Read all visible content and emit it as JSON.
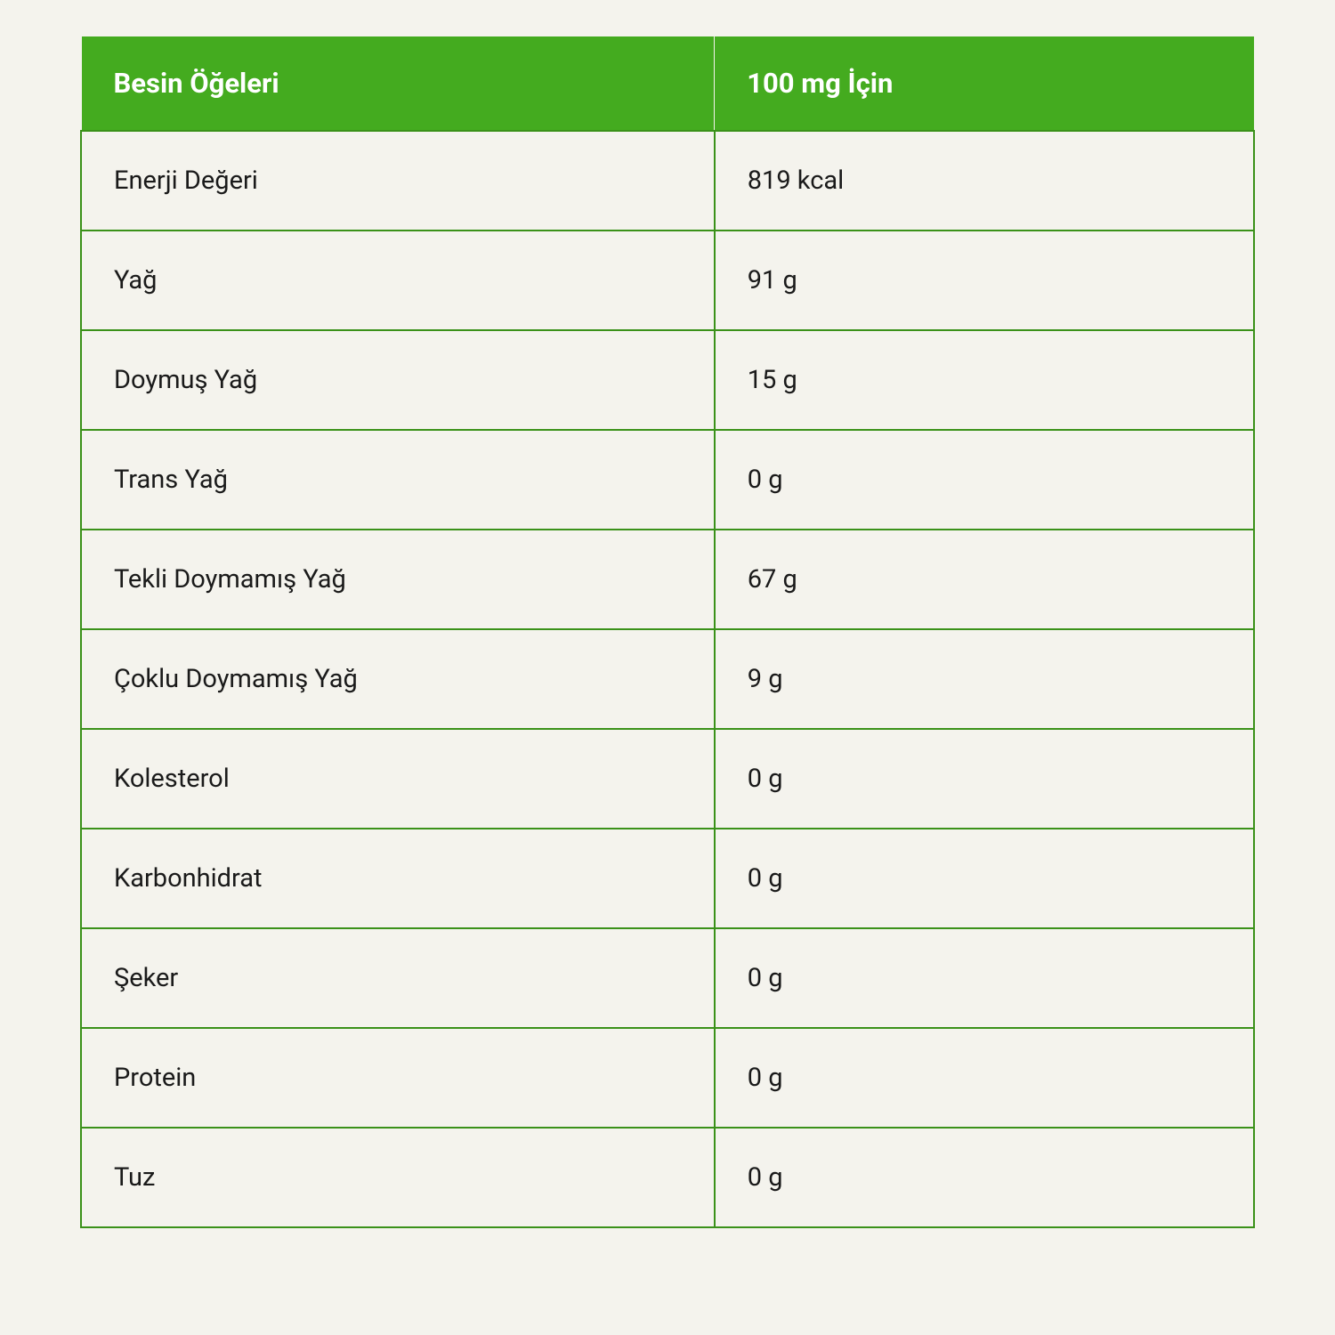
{
  "table": {
    "type": "table",
    "columns": [
      {
        "label": "Besin Öğeleri",
        "width_pct": 54,
        "align": "left"
      },
      {
        "label": "100 mg İçin",
        "width_pct": 46,
        "align": "left"
      }
    ],
    "rows": [
      {
        "label": "Enerji Değeri",
        "value": "819 kcal"
      },
      {
        "label": "Yağ",
        "value": "91 g"
      },
      {
        "label": "Doymuş Yağ",
        "value": "15 g"
      },
      {
        "label": "Trans Yağ",
        "value": "0 g"
      },
      {
        "label": "Tekli Doymamış Yağ",
        "value": "67 g"
      },
      {
        "label": "Çoklu Doymamış Yağ",
        "value": "9 g"
      },
      {
        "label": "Kolesterol",
        "value": "0 g"
      },
      {
        "label": "Karbonhidrat",
        "value": "0 g"
      },
      {
        "label": "Şeker",
        "value": "0 g"
      },
      {
        "label": "Protein",
        "value": "0 g"
      },
      {
        "label": "Tuz",
        "value": "0 g"
      }
    ],
    "header_bg_color": "#44ab1f",
    "header_text_color": "#ffffff",
    "header_fontsize": 31,
    "header_fontweight": 700,
    "cell_bg_color": "#f4f3ed",
    "cell_text_color": "#1a1a1a",
    "cell_fontsize": 29,
    "cell_fontweight": 400,
    "border_color": "#3a9119",
    "border_width": 2,
    "page_bg_color": "#f4f3ed",
    "row_padding_v": 38,
    "row_padding_h": 36,
    "header_padding_v": 34,
    "header_padding_h": 36
  }
}
